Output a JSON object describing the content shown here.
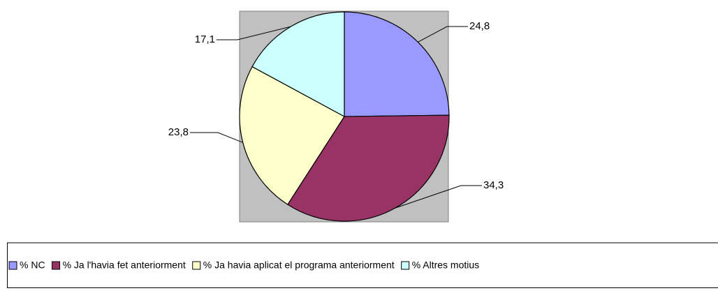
{
  "chart_data": {
    "type": "pie",
    "categories": [
      "% NC",
      "% Ja l'havia fet anteriorment",
      "% Ja havia aplicat el programa anteriorment",
      "% Altres motius"
    ],
    "values": [
      24.8,
      34.3,
      23.8,
      17.1
    ],
    "value_labels": [
      "24,8",
      "34,3",
      "23,8",
      "17,1"
    ],
    "colors": [
      "#9999ff",
      "#993366",
      "#ffffcc",
      "#ccffff"
    ],
    "legend": "bottom"
  }
}
